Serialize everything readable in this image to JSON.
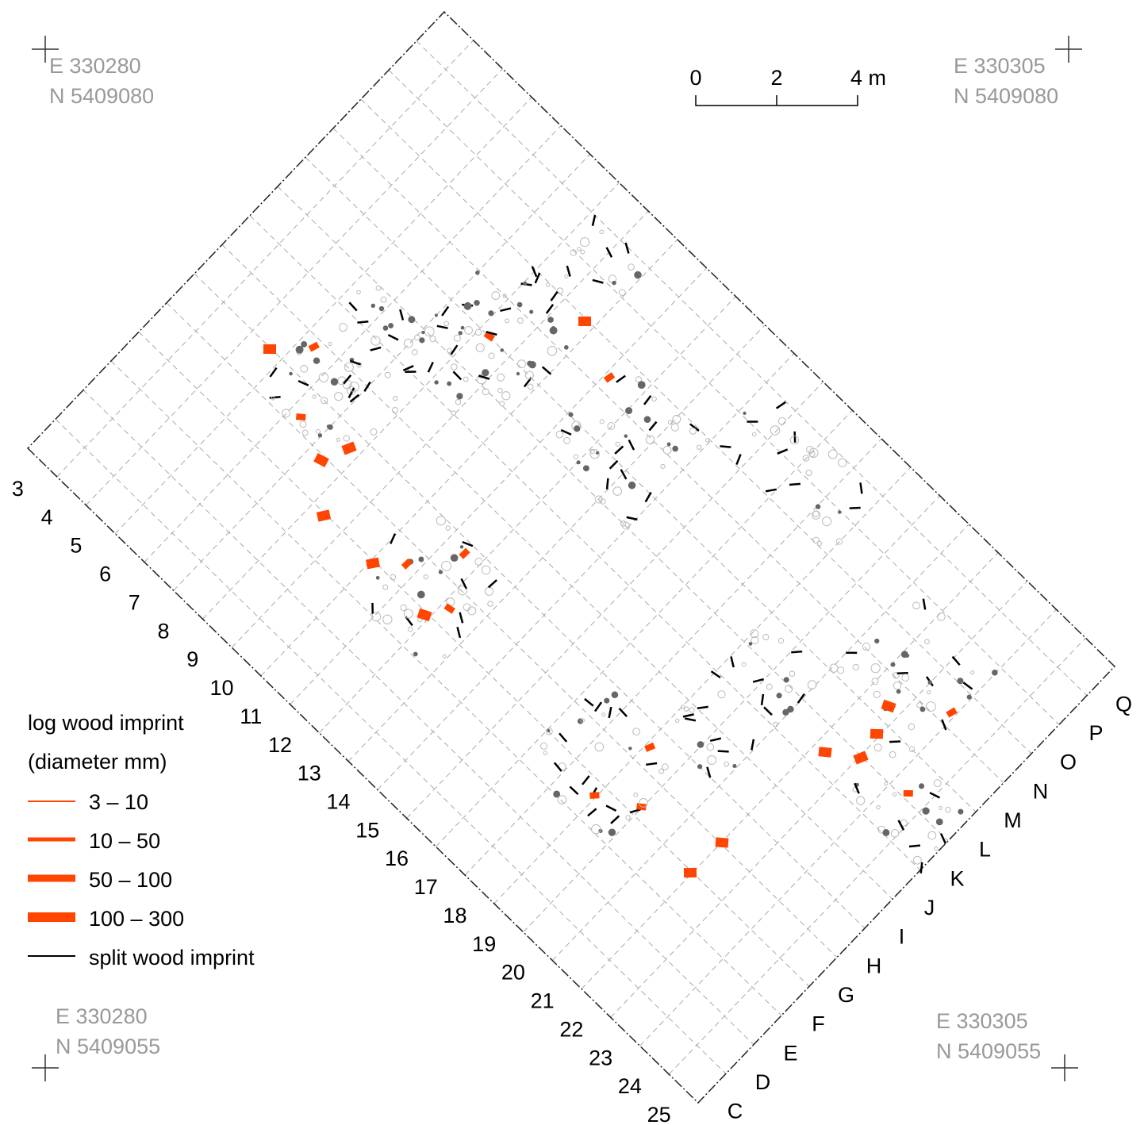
{
  "corners": [
    {
      "easting": "E 330280",
      "northing": "N 5409080"
    },
    {
      "easting": "E 330305",
      "northing": "N 5409080"
    },
    {
      "easting": "E 330280",
      "northing": "N 5409055"
    },
    {
      "easting": "E 330305",
      "northing": "N 5409055"
    }
  ],
  "scale_bar": {
    "ticks": [
      "0",
      "2",
      "4 m"
    ]
  },
  "grid": {
    "rows": [
      "3",
      "4",
      "5",
      "6",
      "7",
      "8",
      "9",
      "10",
      "11",
      "12",
      "13",
      "14",
      "15",
      "16",
      "17",
      "18",
      "19",
      "20",
      "21",
      "22",
      "23",
      "24",
      "25"
    ],
    "columns": [
      "C",
      "D",
      "E",
      "F",
      "G",
      "H",
      "I",
      "J",
      "K",
      "L",
      "M",
      "N",
      "O",
      "P",
      "Q"
    ]
  },
  "legend": {
    "title": [
      "log wood imprint",
      "(diameter mm)"
    ],
    "items": [
      "3 – 10",
      "10 – 50",
      "50 – 100",
      "100 – 300",
      "split wood imprint"
    ]
  }
}
